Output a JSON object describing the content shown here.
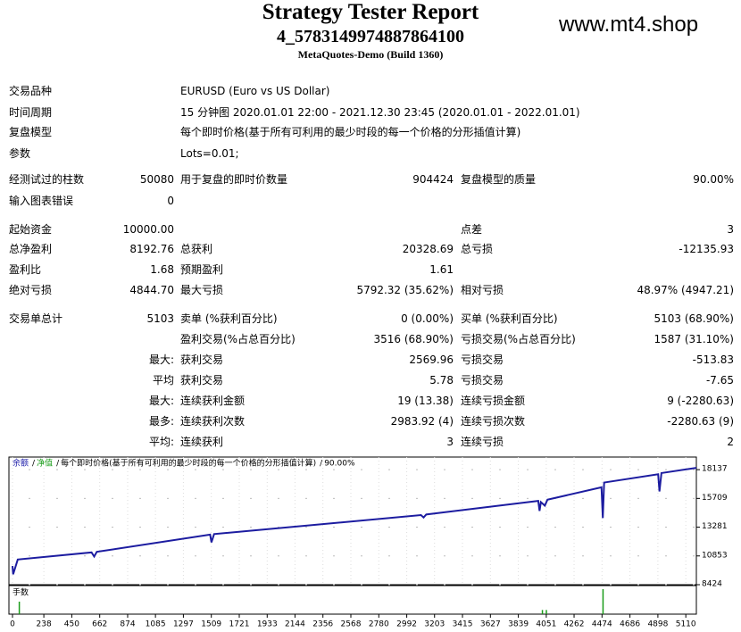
{
  "header": {
    "title": "Strategy Tester Report",
    "subtitle": "4_5783149974887864100",
    "build": "MetaQuotes-Demo (Build 1360)",
    "watermark": "www.mt4.shop"
  },
  "info": [
    [
      "交易品种",
      "EURUSD (Euro vs US Dollar)"
    ],
    [
      "时间周期",
      "15 分钟图 2020.01.01 22:00 - 2021.12.30 23:45 (2020.01.01 - 2022.01.01)"
    ],
    [
      "复盘模型",
      "每个即时价格(基于所有可利用的最少时段的每一个价格的分形插值计算)"
    ],
    [
      "参数",
      "Lots=0.01;"
    ]
  ],
  "stats": [
    [
      "经测试过的柱数",
      "50080",
      "用于复盘的即时价数量",
      "904424",
      "复盘模型的质量",
      "90.00%"
    ],
    [
      "输入图表错误",
      "0",
      null,
      null,
      null,
      null
    ],
    [
      "起始资金",
      "10000.00",
      null,
      null,
      "点差",
      "3"
    ],
    [
      "总净盈利",
      "8192.76",
      "总获利",
      "20328.69",
      "总亏损",
      "-12135.93"
    ],
    [
      "盈利比",
      "1.68",
      "预期盈利",
      "1.61",
      null,
      null
    ],
    [
      "绝对亏损",
      "4844.70",
      "最大亏损",
      "5792.32 (35.62%)",
      "相对亏损",
      "48.97% (4947.21)"
    ],
    [
      "交易单总计",
      "5103",
      "卖单 (%获利百分比)",
      "0 (0.00%)",
      "买单 (%获利百分比)",
      "5103 (68.90%)"
    ],
    [
      null,
      null,
      "盈利交易(%占总百分比)",
      "3516 (68.90%)",
      "亏损交易(%占总百分比)",
      "1587 (31.10%)"
    ],
    [
      null,
      "最大:",
      "获利交易",
      "2569.96",
      "亏损交易",
      "-513.83"
    ],
    [
      null,
      "平均",
      "获利交易",
      "5.78",
      "亏损交易",
      "-7.65"
    ],
    [
      null,
      "最大:",
      "连续获利金额",
      "19 (13.38)",
      "连续亏损金额",
      "9 (-2280.63)"
    ],
    [
      null,
      "最多:",
      "连续获利次数",
      "2983.92 (4)",
      "连续亏损次数",
      "-2280.63 (9)"
    ],
    [
      null,
      "平均:",
      "连续获利",
      "3",
      "连续亏损",
      "2"
    ]
  ],
  "chart_data": {
    "type": "line",
    "legend": [
      {
        "text": "余额",
        "color": "#1a1aa8"
      },
      {
        "text": "净值",
        "color": "#1a9c1a"
      },
      {
        "text": "每个即时价格(基于所有可利用的最少时段的每一个价格的分形插值计算)",
        "color": "#000000"
      },
      {
        "text": "90.00%",
        "color": "#000000"
      }
    ],
    "legend_separator": "/",
    "series": [
      {
        "name": "余额",
        "color": "#1c1ca0",
        "x": [
          0,
          5,
          40,
          600,
          620,
          640,
          1500,
          1510,
          1530,
          3100,
          3120,
          3140,
          3990,
          4000,
          4010,
          4040,
          4060,
          4470,
          4480,
          4490,
          4900,
          4910,
          4925,
          5190
        ],
        "values": [
          10000,
          9300,
          10550,
          11150,
          10800,
          11200,
          12650,
          12000,
          12700,
          14300,
          14100,
          14350,
          15500,
          14650,
          15400,
          15100,
          15600,
          16650,
          14050,
          17050,
          17750,
          16300,
          17850,
          18290
        ]
      }
    ],
    "xlim": [
      -27,
      5190
    ],
    "ylim": [
      8424,
      19202
    ],
    "xticks": [
      0,
      238,
      450,
      662,
      874,
      1085,
      1297,
      1509,
      1721,
      1933,
      2144,
      2356,
      2568,
      2780,
      2992,
      3203,
      3415,
      3627,
      3839,
      4051,
      4262,
      4474,
      4686,
      4898,
      5110
    ],
    "yticks": [
      8424,
      10853,
      13281,
      15709,
      18137
    ],
    "volume": {
      "label": "手数",
      "color": "#1a9c1a",
      "x": [
        50,
        4020,
        4050,
        4480
      ],
      "values": [
        0.3,
        0.1,
        0.1,
        0.6
      ],
      "ylim": [
        0,
        0.6
      ]
    }
  }
}
